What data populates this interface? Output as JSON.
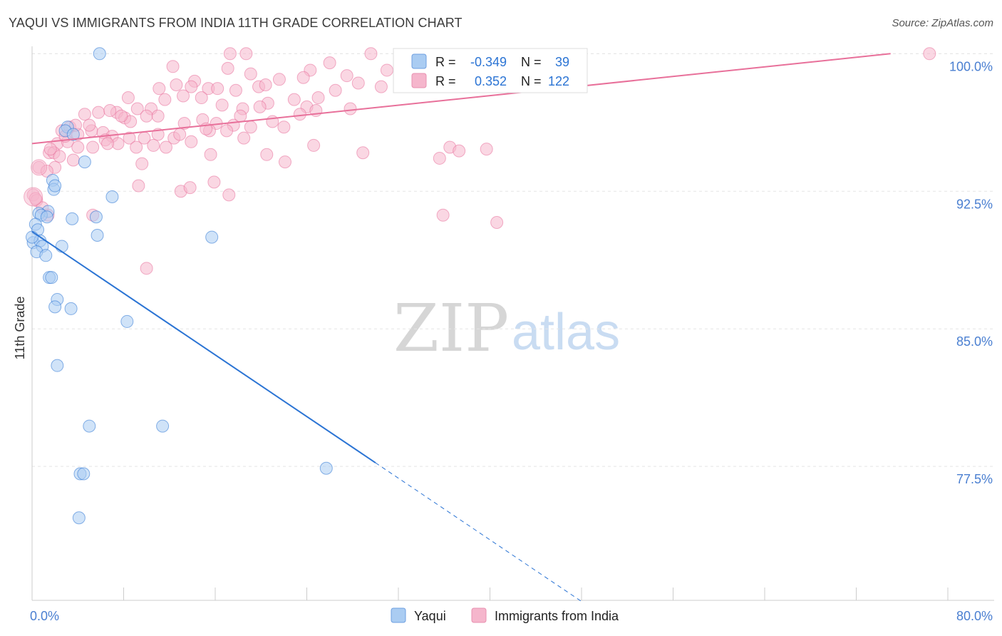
{
  "header": {
    "title": "YAQUI VS IMMIGRANTS FROM INDIA 11TH GRADE CORRELATION CHART",
    "source": "Source: ZipAtlas.com"
  },
  "watermark": {
    "zip": "ZIP",
    "atlas": "atlas"
  },
  "colors": {
    "yaqui": "#2b74d4",
    "yaqui_fill": "#aaccf2",
    "india": "#e8709a",
    "india_fill": "#f5b6cc",
    "tick_label": "#4a7fd1",
    "grid": "#e5e5e5"
  },
  "stats": {
    "yaqui": {
      "r_label": "R =",
      "r_value": "-0.349",
      "n_label": "N =",
      "n_value": "39"
    },
    "india": {
      "r_label": "R =",
      "r_value": "0.352",
      "n_label": "N =",
      "n_value": "122"
    }
  },
  "chart_data": {
    "type": "scatter",
    "title": "YAQUI VS IMMIGRANTS FROM INDIA 11TH GRADE CORRELATION CHART",
    "xlabel": "",
    "ylabel": "11th Grade",
    "xlim": [
      0,
      80
    ],
    "ylim": [
      70.2,
      100.4
    ],
    "x_tick_labels": [
      "0.0%",
      "80.0%"
    ],
    "y_ticks": [
      77.5,
      85.0,
      92.5,
      100.0
    ],
    "y_tick_labels": [
      "77.5%",
      "85.0%",
      "92.5%",
      "100.0%"
    ],
    "legend": [
      "Yaqui",
      "Immigrants from India"
    ],
    "series": [
      {
        "name": "Yaqui",
        "trend": {
          "x0": 0,
          "y0": 90.3,
          "x1": 30,
          "y1": 77.7,
          "dash_to_x": 48
        },
        "points": [
          [
            5.9,
            100.0
          ],
          [
            3.1,
            96.0
          ],
          [
            2.9,
            95.8
          ],
          [
            3.6,
            95.6
          ],
          [
            4.6,
            94.1
          ],
          [
            1.8,
            93.1
          ],
          [
            1.9,
            92.6
          ],
          [
            2.0,
            92.8
          ],
          [
            7.0,
            92.2
          ],
          [
            1.4,
            91.4
          ],
          [
            0.6,
            91.3
          ],
          [
            0.8,
            91.2
          ],
          [
            1.3,
            91.1
          ],
          [
            3.5,
            91.0
          ],
          [
            5.6,
            91.1
          ],
          [
            0.3,
            90.7
          ],
          [
            0.5,
            90.4
          ],
          [
            5.7,
            90.1
          ],
          [
            15.7,
            90.0
          ],
          [
            0.1,
            89.7
          ],
          [
            0.7,
            89.8
          ],
          [
            0.9,
            89.5
          ],
          [
            2.6,
            89.5
          ],
          [
            0.4,
            89.2
          ],
          [
            1.2,
            89.0
          ],
          [
            1.5,
            87.8
          ],
          [
            1.7,
            87.8
          ],
          [
            2.2,
            86.6
          ],
          [
            2.0,
            86.2
          ],
          [
            3.4,
            86.1
          ],
          [
            8.3,
            85.4
          ],
          [
            2.2,
            83.0
          ],
          [
            5.0,
            79.7
          ],
          [
            11.4,
            79.7
          ],
          [
            4.2,
            77.1
          ],
          [
            4.5,
            77.1
          ],
          [
            25.7,
            77.4
          ],
          [
            4.1,
            74.7
          ],
          [
            0.0,
            90.0
          ]
        ]
      },
      {
        "name": "Immigrants from India",
        "trend": {
          "x0": 0,
          "y0": 95.1,
          "x1": 75,
          "y1": 100.0
        },
        "points": [
          [
            17.3,
            100.0
          ],
          [
            18.7,
            100.0
          ],
          [
            29.6,
            100.0
          ],
          [
            78.4,
            100.0
          ],
          [
            12.3,
            99.3
          ],
          [
            17.1,
            99.2
          ],
          [
            24.3,
            99.1
          ],
          [
            27.5,
            98.8
          ],
          [
            19.1,
            98.9
          ],
          [
            26.0,
            99.5
          ],
          [
            31.0,
            99.1
          ],
          [
            32.5,
            99.1
          ],
          [
            35.4,
            99.3
          ],
          [
            14.2,
            98.5
          ],
          [
            11.1,
            98.1
          ],
          [
            12.6,
            98.3
          ],
          [
            13.9,
            98.2
          ],
          [
            15.4,
            98.1
          ],
          [
            16.2,
            98.1
          ],
          [
            17.8,
            98.0
          ],
          [
            19.8,
            98.2
          ],
          [
            20.4,
            98.3
          ],
          [
            23.7,
            98.7
          ],
          [
            28.5,
            98.4
          ],
          [
            8.4,
            97.6
          ],
          [
            9.2,
            97.0
          ],
          [
            10.4,
            97.0
          ],
          [
            11.6,
            97.5
          ],
          [
            13.2,
            97.7
          ],
          [
            14.8,
            97.6
          ],
          [
            16.6,
            97.2
          ],
          [
            18.4,
            97.0
          ],
          [
            20.6,
            97.3
          ],
          [
            22.9,
            97.5
          ],
          [
            24.0,
            97.1
          ],
          [
            25.0,
            97.6
          ],
          [
            27.8,
            97.0
          ],
          [
            5.8,
            96.8
          ],
          [
            7.4,
            96.8
          ],
          [
            8.1,
            96.5
          ],
          [
            10.0,
            96.6
          ],
          [
            11.0,
            96.6
          ],
          [
            13.3,
            96.2
          ],
          [
            14.9,
            96.4
          ],
          [
            16.1,
            96.2
          ],
          [
            17.6,
            96.1
          ],
          [
            18.2,
            96.6
          ],
          [
            19.1,
            96.0
          ],
          [
            21.0,
            96.3
          ],
          [
            23.4,
            96.7
          ],
          [
            4.6,
            96.7
          ],
          [
            2.6,
            95.8
          ],
          [
            3.3,
            96.0
          ],
          [
            4.0,
            95.6
          ],
          [
            5.2,
            95.8
          ],
          [
            6.2,
            95.7
          ],
          [
            7.0,
            95.5
          ],
          [
            8.5,
            95.4
          ],
          [
            9.8,
            95.4
          ],
          [
            11.0,
            95.6
          ],
          [
            12.4,
            95.4
          ],
          [
            13.9,
            95.2
          ],
          [
            15.5,
            95.8
          ],
          [
            17.0,
            95.8
          ],
          [
            18.5,
            95.4
          ],
          [
            22.0,
            96.0
          ],
          [
            2.2,
            95.1
          ],
          [
            3.1,
            95.2
          ],
          [
            4.0,
            94.9
          ],
          [
            5.3,
            94.9
          ],
          [
            6.4,
            95.3
          ],
          [
            7.5,
            95.1
          ],
          [
            9.1,
            94.9
          ],
          [
            11.7,
            94.9
          ],
          [
            15.6,
            94.5
          ],
          [
            20.5,
            94.5
          ],
          [
            24.6,
            95.0
          ],
          [
            28.9,
            94.6
          ],
          [
            1.5,
            94.6
          ],
          [
            1.9,
            94.6
          ],
          [
            2.4,
            94.4
          ],
          [
            3.6,
            94.2
          ],
          [
            9.6,
            94.0
          ],
          [
            22.1,
            94.1
          ],
          [
            0.6,
            93.8
          ],
          [
            2.0,
            93.8
          ],
          [
            1.3,
            93.6
          ],
          [
            35.6,
            94.3
          ],
          [
            36.5,
            94.9
          ],
          [
            37.3,
            94.7
          ],
          [
            39.7,
            94.8
          ],
          [
            0.1,
            92.3
          ],
          [
            0.4,
            92.0
          ],
          [
            9.3,
            92.8
          ],
          [
            13.0,
            92.5
          ],
          [
            13.8,
            92.7
          ],
          [
            15.9,
            93.0
          ],
          [
            17.2,
            92.3
          ],
          [
            0.9,
            91.6
          ],
          [
            1.4,
            91.2
          ],
          [
            5.3,
            91.2
          ],
          [
            35.9,
            91.2
          ],
          [
            40.6,
            90.8
          ],
          [
            10.0,
            88.3
          ],
          [
            30.5,
            98.2
          ],
          [
            32.6,
            98.6
          ],
          [
            26.5,
            98.0
          ],
          [
            21.6,
            98.6
          ],
          [
            6.8,
            96.9
          ],
          [
            8.6,
            96.3
          ],
          [
            12.9,
            95.6
          ],
          [
            15.2,
            95.9
          ],
          [
            19.9,
            97.1
          ],
          [
            1.6,
            94.8
          ],
          [
            2.9,
            95.5
          ],
          [
            6.6,
            95.1
          ],
          [
            10.6,
            95.0
          ],
          [
            3.8,
            96.1
          ],
          [
            7.8,
            96.6
          ],
          [
            5.0,
            96.1
          ],
          [
            24.8,
            96.9
          ],
          [
            0.3,
            92.1
          ]
        ]
      }
    ]
  },
  "legend_bottom": {
    "yaqui_label": "Yaqui",
    "india_label": "Immigrants from India"
  }
}
